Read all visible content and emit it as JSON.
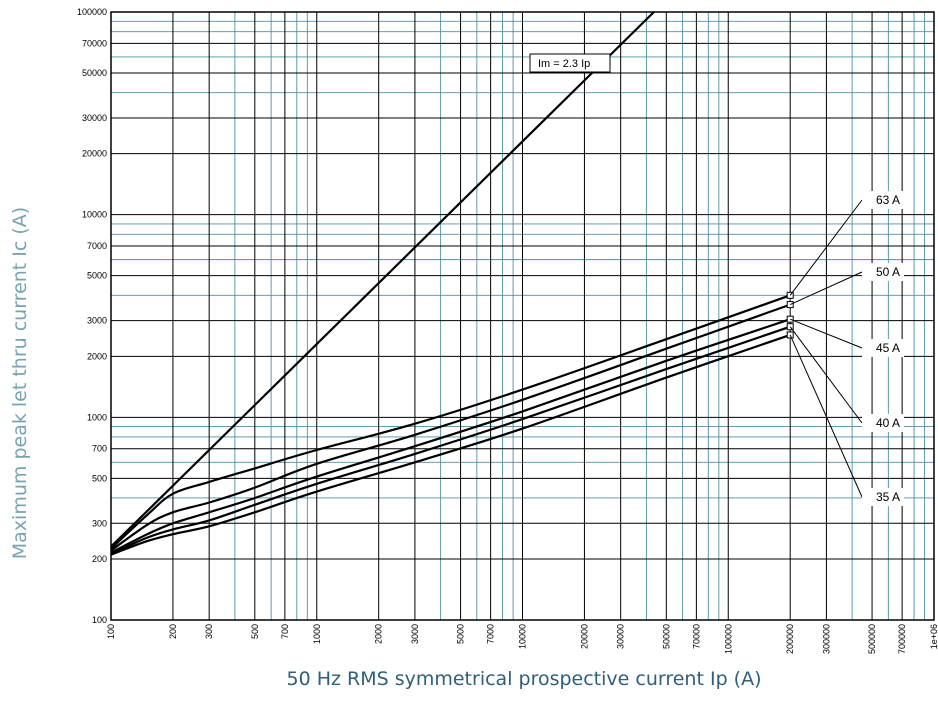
{
  "chart_data": {
    "type": "line",
    "xlabel": "50 Hz RMS symmetrical prospective current Ip (A)",
    "ylabel": "Maximum peak let thru current Ic (A)",
    "xscale": "log",
    "yscale": "log",
    "xlim": [
      100,
      1000000
    ],
    "ylim": [
      100,
      100000
    ],
    "grid": true,
    "x_tick_labels": [
      "100",
      "200",
      "300",
      "500",
      "700",
      "1000",
      "2000",
      "3000",
      "5000",
      "7000",
      "10000",
      "20000",
      "30000",
      "50000",
      "70000",
      "100000",
      "200000",
      "300000",
      "500000",
      "700000",
      "1e+06"
    ],
    "y_tick_labels": [
      "100",
      "200",
      "300",
      "500",
      "700",
      "1000",
      "2000",
      "3000",
      "5000",
      "7000",
      "10000",
      "20000",
      "30000",
      "50000",
      "70000",
      "100000"
    ],
    "series": [
      {
        "name": "Im = 2.3 Ip",
        "x": [
          100,
          43500
        ],
        "y": [
          230,
          100000
        ]
      },
      {
        "name": "63 A",
        "x": [
          100,
          150,
          200,
          300,
          500,
          1000,
          3000,
          10000,
          50000,
          200000
        ],
        "y": [
          225,
          330,
          420,
          480,
          560,
          690,
          930,
          1370,
          2430,
          4000
        ]
      },
      {
        "name": "50 A",
        "x": [
          100,
          150,
          200,
          300,
          500,
          1000,
          3000,
          10000,
          50000,
          200000
        ],
        "y": [
          220,
          295,
          340,
          380,
          450,
          590,
          820,
          1220,
          2180,
          3600
        ]
      },
      {
        "name": "45 A",
        "x": [
          100,
          150,
          200,
          300,
          500,
          1000,
          3000,
          10000,
          50000,
          200000
        ],
        "y": [
          215,
          265,
          300,
          340,
          400,
          510,
          720,
          1070,
          1900,
          3050
        ]
      },
      {
        "name": "40 A",
        "x": [
          100,
          150,
          200,
          300,
          500,
          1000,
          3000,
          10000,
          50000,
          200000
        ],
        "y": [
          212,
          255,
          280,
          310,
          370,
          470,
          660,
          980,
          1730,
          2800
        ]
      },
      {
        "name": "35 A",
        "x": [
          100,
          150,
          200,
          300,
          500,
          1000,
          3000,
          10000,
          50000,
          200000
        ],
        "y": [
          210,
          245,
          265,
          290,
          340,
          430,
          600,
          880,
          1570,
          2550
        ]
      }
    ],
    "annotations": [
      "Im = 2.3 Ip",
      "63 A",
      "50 A",
      "45 A",
      "40 A",
      "35 A"
    ],
    "colors": {
      "major_grid": "#000000",
      "minor_grid": "#4f8fa0",
      "curves": "#000000"
    }
  }
}
